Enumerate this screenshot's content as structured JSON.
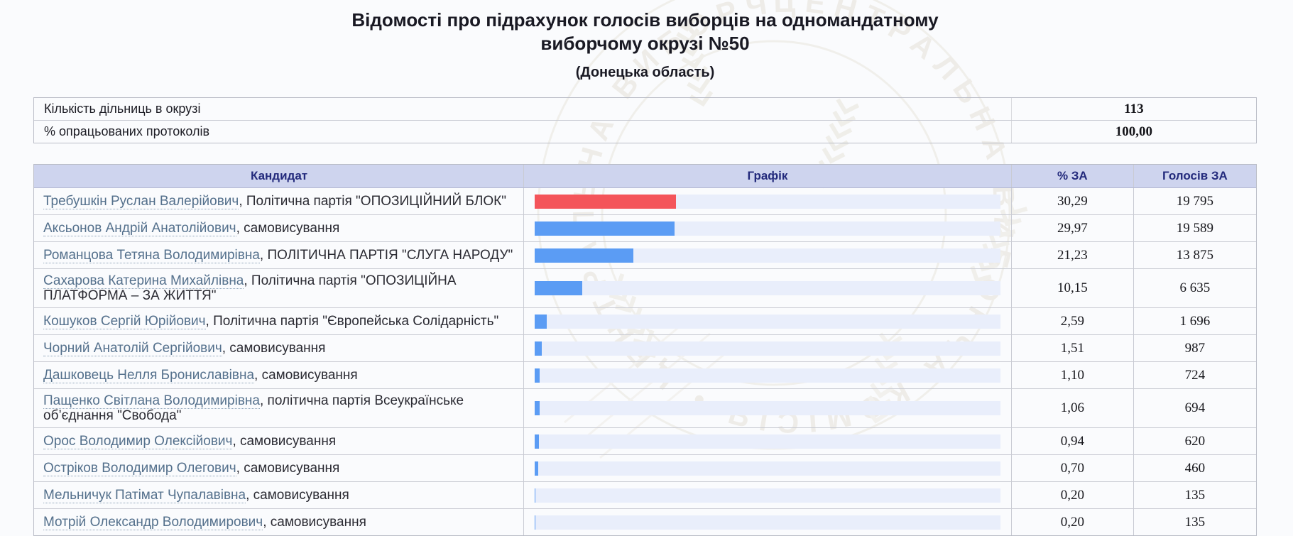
{
  "page": {
    "title": "Відомості про підрахунок голосів виборців на одномандатному виборчому окрузі №50",
    "subtitle": "(Донецька область)"
  },
  "summary": {
    "rows": [
      {
        "label": "Кількість дільниць в окрузі",
        "value": "113"
      },
      {
        "label": "% опрацьованих протоколів",
        "value": "100,00"
      }
    ]
  },
  "results_table": {
    "headers": {
      "candidate": "Кандидат",
      "chart": "Графік",
      "percent": "% ЗА",
      "votes": "Голосів ЗА"
    },
    "rows": [
      {
        "name": "Требушкін Руслан Валерійович",
        "affiliation": ", Політична партія \"ОПОЗИЦІЙНИЙ БЛОК\"",
        "percent": "30,29",
        "votes": "19 795",
        "bar_pct": 30.29,
        "bar_color": "#f4545a"
      },
      {
        "name": "Аксьонов Андрій Анатолійович",
        "affiliation": ", самовисування",
        "percent": "29,97",
        "votes": "19 589",
        "bar_pct": 29.97,
        "bar_color": "#5b9cf4"
      },
      {
        "name": "Романцова Тетяна Володимирівна",
        "affiliation": ", ПОЛІТИЧНА ПАРТІЯ \"СЛУГА НАРОДУ\"",
        "percent": "21,23",
        "votes": "13 875",
        "bar_pct": 21.23,
        "bar_color": "#5b9cf4"
      },
      {
        "name": "Сахарова Катерина Михайлівна",
        "affiliation": ", Політична партія \"ОПОЗИЦІЙНА ПЛАТФОРМА – ЗА ЖИТТЯ\"",
        "percent": "10,15",
        "votes": "6 635",
        "bar_pct": 10.15,
        "bar_color": "#5b9cf4"
      },
      {
        "name": "Кошуков Сергій Юрійович",
        "affiliation": ", Політична партія \"Європейська Солідарність\"",
        "percent": "2,59",
        "votes": "1 696",
        "bar_pct": 2.59,
        "bar_color": "#5b9cf4"
      },
      {
        "name": "Чорний Анатолій Сергійович",
        "affiliation": ", самовисування",
        "percent": "1,51",
        "votes": "987",
        "bar_pct": 1.51,
        "bar_color": "#5b9cf4"
      },
      {
        "name": "Дашковець Нелля Брониславівна",
        "affiliation": ", самовисування",
        "percent": "1,10",
        "votes": "724",
        "bar_pct": 1.1,
        "bar_color": "#5b9cf4"
      },
      {
        "name": "Пащенко Світлана Володимирівна",
        "affiliation": ", політична партія Всеукраїнське об’єднання \"Свобода\"",
        "percent": "1,06",
        "votes": "694",
        "bar_pct": 1.06,
        "bar_color": "#5b9cf4"
      },
      {
        "name": "Орос Володимир Олексійович",
        "affiliation": ", самовисування",
        "percent": "0,94",
        "votes": "620",
        "bar_pct": 0.94,
        "bar_color": "#5b9cf4"
      },
      {
        "name": "Остріков Володимир Олегович",
        "affiliation": ", самовисування",
        "percent": "0,70",
        "votes": "460",
        "bar_pct": 0.7,
        "bar_color": "#5b9cf4"
      },
      {
        "name": "Мельничук Патімат Чупалавівна",
        "affiliation": ", самовисування",
        "percent": "0,20",
        "votes": "135",
        "bar_pct": 0.2,
        "bar_color": "#5b9cf4"
      },
      {
        "name": "Мотрій Олександр Володимирович",
        "affiliation": ", самовисування",
        "percent": "0,20",
        "votes": "135",
        "bar_pct": 0.2,
        "bar_color": "#5b9cf4"
      }
    ]
  },
  "colors": {
    "leader_bar": "#f4545a",
    "default_bar": "#5b9cf4",
    "bar_track": "#e9eefb",
    "header_bg": "#ced4ee",
    "header_text": "#232a7c",
    "link": "#54708c"
  },
  "watermark_text": "ЦЕНТРАЛЬНА ВИБОРЧА КОМІСІЯ • ЦЕНТРАЛЬНА ВИБОРЧА КОМІСІЯ •"
}
